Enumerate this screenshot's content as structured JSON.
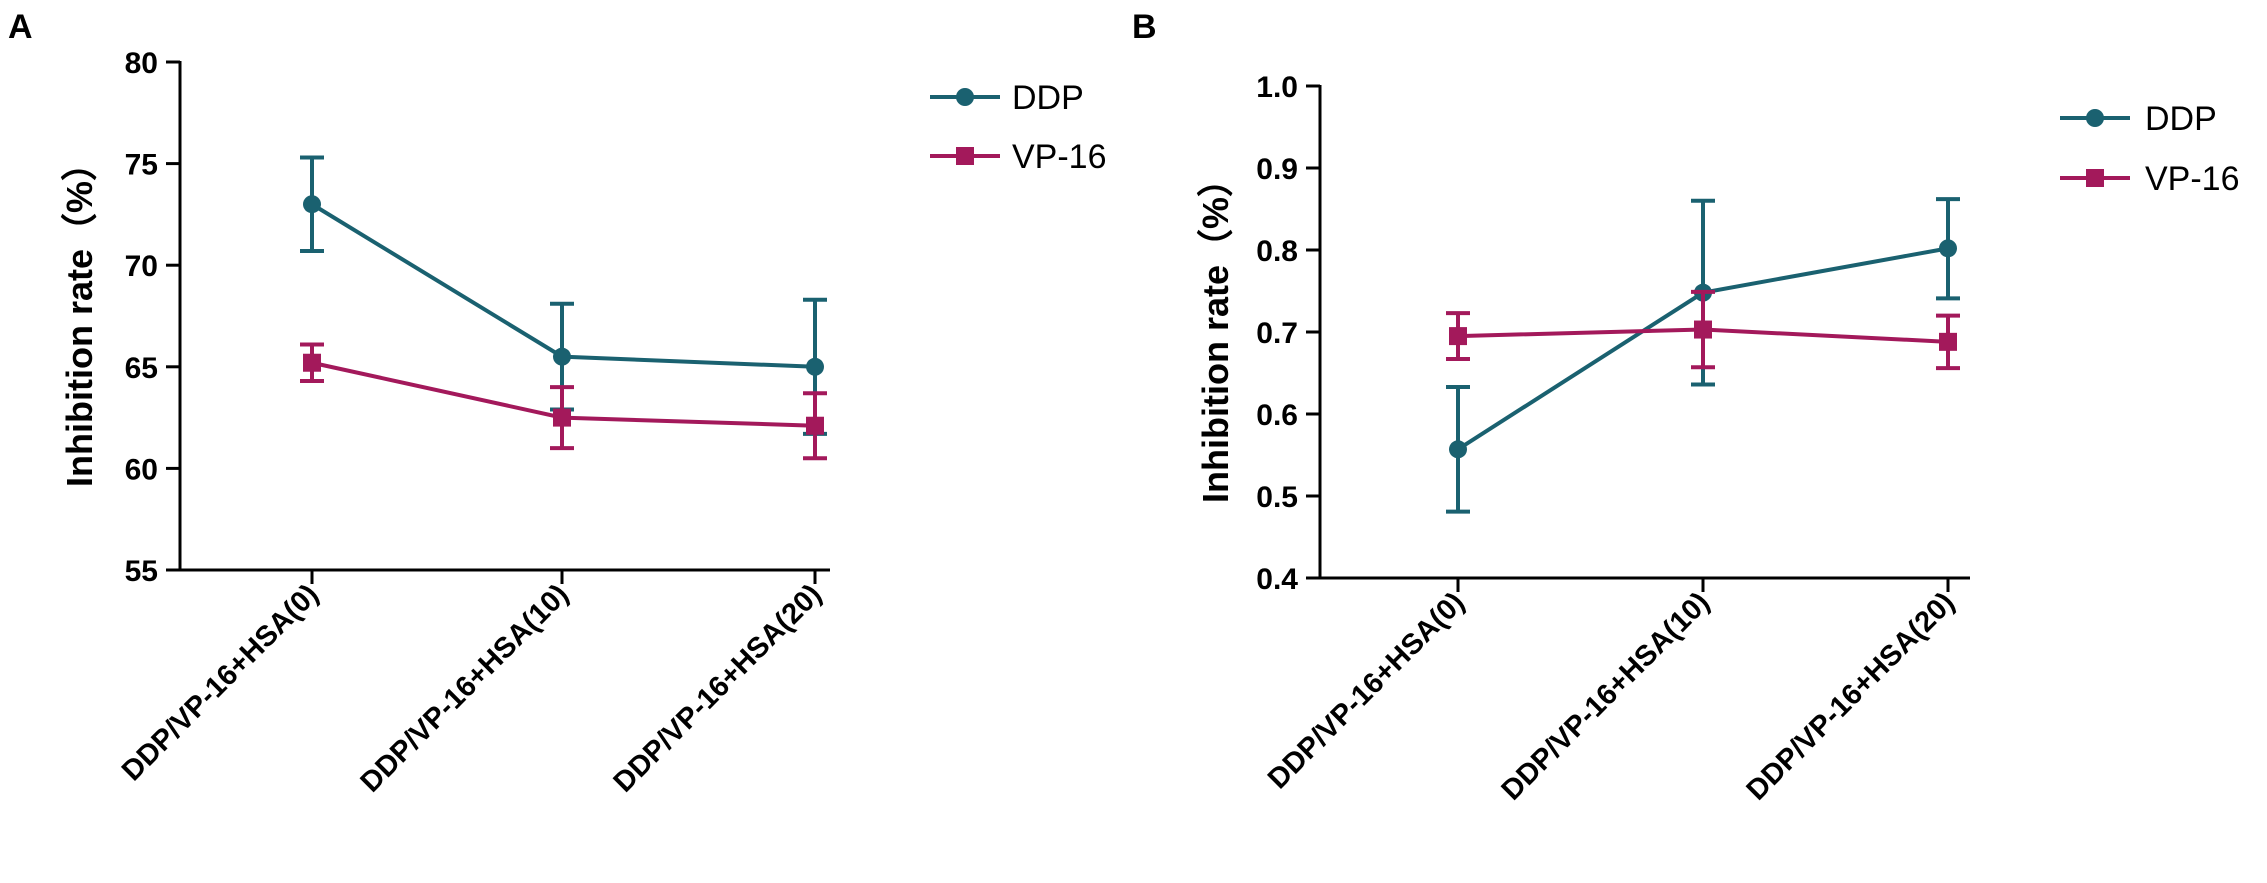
{
  "chart_data": [
    {
      "panel": "A",
      "type": "line",
      "title": "",
      "xlabel": "",
      "ylabel": "Inhibition rate（%）",
      "ylim": [
        55,
        80
      ],
      "yticks": [
        55,
        60,
        65,
        70,
        75,
        80
      ],
      "ytick_labels": [
        "55",
        "60",
        "65",
        "70",
        "75",
        "80"
      ],
      "categories": [
        "DDP/VP-16+HSA(0)",
        "DDP/VP-16+HSA(10)",
        "DDP/VP-16+HSA(20)"
      ],
      "series": [
        {
          "name": "DDP",
          "color": "#1a6170",
          "marker": "circle",
          "values": [
            73.0,
            65.5,
            65.0
          ],
          "err_low": [
            70.7,
            62.9,
            61.7
          ],
          "err_high": [
            75.3,
            68.1,
            68.3
          ]
        },
        {
          "name": "VP-16",
          "color": "#a3195b",
          "marker": "square",
          "values": [
            65.2,
            62.5,
            62.1
          ],
          "err_low": [
            64.3,
            61.0,
            60.5
          ],
          "err_high": [
            66.1,
            64.0,
            63.7
          ]
        }
      ],
      "legend_position": "top-right"
    },
    {
      "panel": "B",
      "type": "line",
      "title": "",
      "xlabel": "",
      "ylabel": "Inhibition rate（%）",
      "ylim": [
        0.4,
        1.0
      ],
      "yticks": [
        0.4,
        0.5,
        0.6,
        0.7,
        0.8,
        0.9,
        1.0
      ],
      "ytick_labels": [
        "0.4",
        "0.5",
        "0.6",
        "0.7",
        "0.8",
        "0.9",
        "1.0"
      ],
      "categories": [
        "DDP/VP-16+HSA(0)",
        "DDP/VP-16+HSA(10)",
        "DDP/VP-16+HSA(20)"
      ],
      "series": [
        {
          "name": "DDP",
          "color": "#1a6170",
          "marker": "circle",
          "values": [
            0.557,
            0.748,
            0.802
          ],
          "err_low": [
            0.481,
            0.636,
            0.741
          ],
          "err_high": [
            0.633,
            0.86,
            0.862
          ]
        },
        {
          "name": "VP-16",
          "color": "#a3195b",
          "marker": "square",
          "values": [
            0.695,
            0.703,
            0.688
          ],
          "err_low": [
            0.667,
            0.657,
            0.656
          ],
          "err_high": [
            0.723,
            0.749,
            0.72
          ]
        }
      ],
      "legend_position": "top-right"
    }
  ]
}
